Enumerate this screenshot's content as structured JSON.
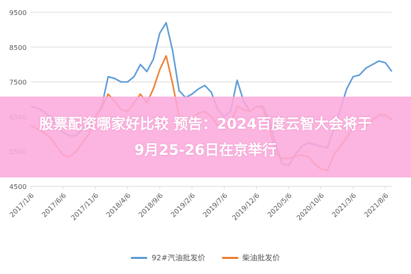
{
  "overlay": {
    "line1": "股票配资哪家好比较 预告：2024百度云智大会将于",
    "line2": "9月25-26日在京举行"
  },
  "colors": {
    "series_blue": "#5b9bd5",
    "series_orange": "#ed7d31",
    "grid": "#d9d9d9",
    "axis_text": "#595959",
    "overlay_bg": "#fcaadc"
  },
  "chart_data": {
    "type": "line",
    "y_ticks": [
      4500,
      5500,
      6500,
      7500,
      8500,
      9500
    ],
    "ylim": [
      4500,
      9500
    ],
    "x_ticks": [
      "2017/1/6",
      "2017/6/6",
      "2017/11/6",
      "2018/4/6",
      "2018/9/6",
      "2019/2/6",
      "2019/7/6",
      "2019/12/6",
      "2020/5/6",
      "2020/10/6",
      "2021/3/6",
      "2021/8/6"
    ],
    "grid": "horizontal",
    "legend_position": "bottom",
    "series": [
      {
        "name": "92#汽油批发价",
        "color": "#5b9bd5",
        "points": [
          [
            "2017/1/6",
            6800
          ],
          [
            "2017/2/6",
            6750
          ],
          [
            "2017/3/6",
            6650
          ],
          [
            "2017/4/6",
            6500
          ],
          [
            "2017/5/6",
            6250
          ],
          [
            "2017/6/6",
            6050
          ],
          [
            "2017/7/6",
            5950
          ],
          [
            "2017/8/6",
            5950
          ],
          [
            "2017/9/6",
            6150
          ],
          [
            "2017/10/6",
            6250
          ],
          [
            "2017/11/6",
            6500
          ],
          [
            "2017/12/6",
            6800
          ],
          [
            "2018/1/6",
            7650
          ],
          [
            "2018/2/6",
            7600
          ],
          [
            "2018/3/6",
            7500
          ],
          [
            "2018/4/6",
            7500
          ],
          [
            "2018/5/6",
            7650
          ],
          [
            "2018/6/6",
            8000
          ],
          [
            "2018/7/6",
            7800
          ],
          [
            "2018/8/6",
            8150
          ],
          [
            "2018/9/6",
            8900
          ],
          [
            "2018/10/6",
            9200
          ],
          [
            "2018/11/6",
            8400
          ],
          [
            "2018/12/6",
            7250
          ],
          [
            "2019/1/6",
            7050
          ],
          [
            "2019/2/6",
            7150
          ],
          [
            "2019/3/6",
            7300
          ],
          [
            "2019/4/6",
            7400
          ],
          [
            "2019/5/6",
            7200
          ],
          [
            "2019/6/6",
            6700
          ],
          [
            "2019/7/6",
            6500
          ],
          [
            "2019/8/6",
            6650
          ],
          [
            "2019/9/6",
            7550
          ],
          [
            "2019/10/6",
            6950
          ],
          [
            "2019/11/6",
            6650
          ],
          [
            "2019/12/6",
            6800
          ],
          [
            "2020/1/6",
            6800
          ],
          [
            "2020/2/6",
            6400
          ],
          [
            "2020/3/6",
            5700
          ],
          [
            "2020/4/6",
            5150
          ],
          [
            "2020/5/6",
            5100
          ],
          [
            "2020/6/6",
            5400
          ],
          [
            "2020/7/6",
            5650
          ],
          [
            "2020/8/6",
            5750
          ],
          [
            "2020/9/6",
            5700
          ],
          [
            "2020/10/6",
            5650
          ],
          [
            "2020/11/6",
            5600
          ],
          [
            "2020/12/6",
            6150
          ],
          [
            "2021/1/6",
            6700
          ],
          [
            "2021/2/6",
            7300
          ],
          [
            "2021/3/6",
            7650
          ],
          [
            "2021/4/6",
            7700
          ],
          [
            "2021/5/6",
            7900
          ],
          [
            "2021/6/6",
            8000
          ],
          [
            "2021/7/6",
            8100
          ],
          [
            "2021/8/6",
            8050
          ],
          [
            "2021/9/6",
            7800
          ]
        ]
      },
      {
        "name": "柴油批发价",
        "color": "#ed7d31",
        "points": [
          [
            "2017/1/6",
            6250
          ],
          [
            "2017/2/6",
            6150
          ],
          [
            "2017/3/6",
            6050
          ],
          [
            "2017/4/6",
            5900
          ],
          [
            "2017/5/6",
            5650
          ],
          [
            "2017/6/6",
            5400
          ],
          [
            "2017/7/6",
            5350
          ],
          [
            "2017/8/6",
            5500
          ],
          [
            "2017/9/6",
            5750
          ],
          [
            "2017/10/6",
            6000
          ],
          [
            "2017/11/6",
            6500
          ],
          [
            "2017/12/6",
            6750
          ],
          [
            "2018/1/6",
            7150
          ],
          [
            "2018/2/6",
            6950
          ],
          [
            "2018/3/6",
            6700
          ],
          [
            "2018/4/6",
            6650
          ],
          [
            "2018/5/6",
            6900
          ],
          [
            "2018/6/6",
            7150
          ],
          [
            "2018/7/6",
            6900
          ],
          [
            "2018/8/6",
            7300
          ],
          [
            "2018/9/6",
            7850
          ],
          [
            "2018/10/6",
            8250
          ],
          [
            "2018/11/6",
            7450
          ],
          [
            "2018/12/6",
            6500
          ],
          [
            "2019/1/6",
            6300
          ],
          [
            "2019/2/6",
            6450
          ],
          [
            "2019/3/6",
            6600
          ],
          [
            "2019/4/6",
            6650
          ],
          [
            "2019/5/6",
            6500
          ],
          [
            "2019/6/6",
            6250
          ],
          [
            "2019/7/6",
            6150
          ],
          [
            "2019/8/6",
            6300
          ],
          [
            "2019/9/6",
            6800
          ],
          [
            "2019/10/6",
            6700
          ],
          [
            "2019/11/6",
            6650
          ],
          [
            "2019/12/6",
            6800
          ],
          [
            "2020/1/6",
            6750
          ],
          [
            "2020/2/6",
            6200
          ],
          [
            "2020/3/6",
            5450
          ],
          [
            "2020/4/6",
            5300
          ],
          [
            "2020/5/6",
            5300
          ],
          [
            "2020/6/6",
            5350
          ],
          [
            "2020/7/6",
            5400
          ],
          [
            "2020/8/6",
            5350
          ],
          [
            "2020/9/6",
            5150
          ],
          [
            "2020/10/6",
            5000
          ],
          [
            "2020/11/6",
            4950
          ],
          [
            "2020/12/6",
            5400
          ],
          [
            "2021/1/6",
            5650
          ],
          [
            "2021/2/6",
            5900
          ],
          [
            "2021/3/6",
            6200
          ],
          [
            "2021/4/6",
            6300
          ],
          [
            "2021/5/6",
            6250
          ],
          [
            "2021/6/6",
            6400
          ],
          [
            "2021/7/6",
            6550
          ],
          [
            "2021/8/6",
            6550
          ],
          [
            "2021/9/6",
            6400
          ]
        ]
      }
    ]
  }
}
